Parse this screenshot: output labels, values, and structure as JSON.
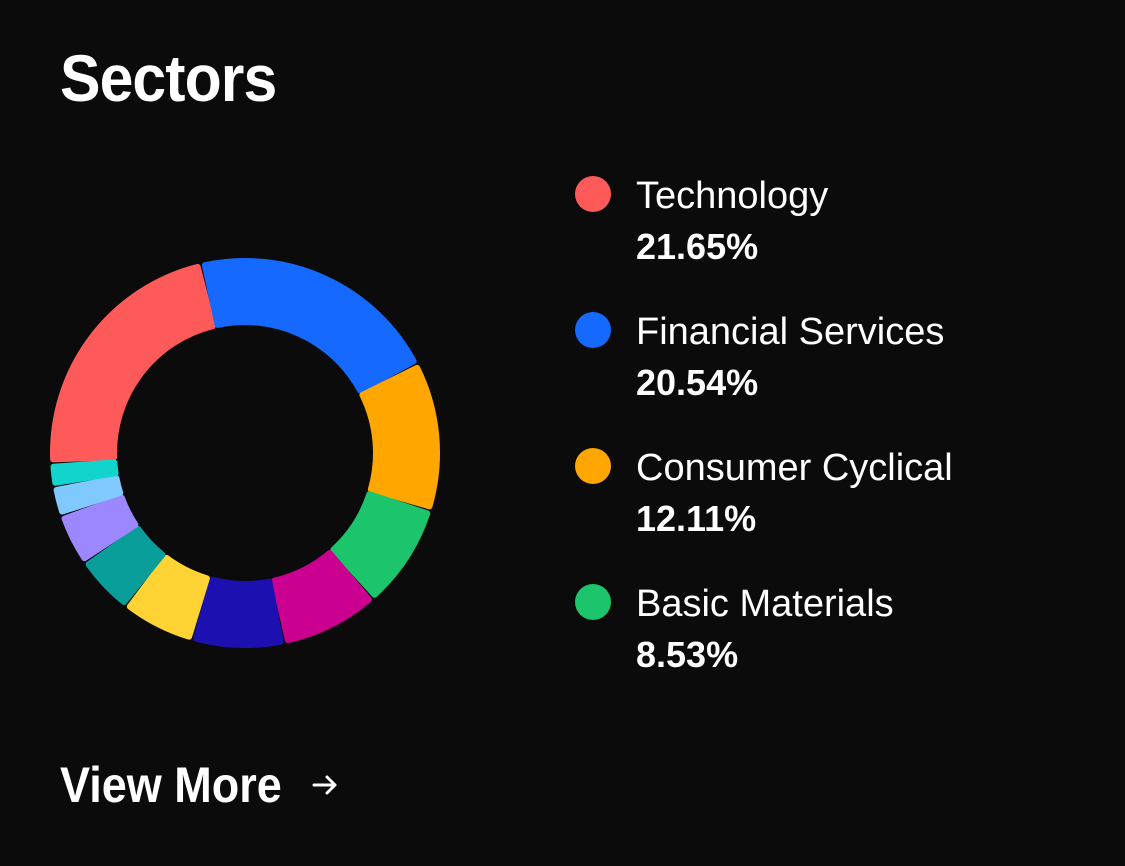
{
  "header": {
    "title": "Sectors"
  },
  "chart_data": {
    "type": "pie",
    "donut": true,
    "categories": [
      "Technology",
      "Financial Services",
      "Consumer Cyclical",
      "Basic Materials",
      "",
      "",
      "",
      "",
      "",
      "",
      ""
    ],
    "values": [
      21.65,
      20.54,
      12.11,
      8.53,
      8.0,
      7.5,
      6.0,
      4.8,
      4.2,
      2.4,
      1.9
    ],
    "colors": [
      "#ff5a5a",
      "#1569ff",
      "#ffa600",
      "#1cc46b",
      "#cc0090",
      "#1c10b0",
      "#ffd333",
      "#0a9e9a",
      "#9c87ff",
      "#7fc9ff",
      "#12d4cc"
    ]
  },
  "legend": {
    "items": [
      {
        "name": "Technology",
        "value": "21.65%",
        "color": "#ff5a5a"
      },
      {
        "name": "Financial Services",
        "value": "20.54%",
        "color": "#1569ff"
      },
      {
        "name": "Consumer Cyclical",
        "value": "12.11%",
        "color": "#ffa600"
      },
      {
        "name": "Basic Materials",
        "value": "8.53%",
        "color": "#1cc46b"
      }
    ]
  },
  "footer": {
    "view_more_label": "View More",
    "view_more_icon": "arrow-right-icon"
  }
}
